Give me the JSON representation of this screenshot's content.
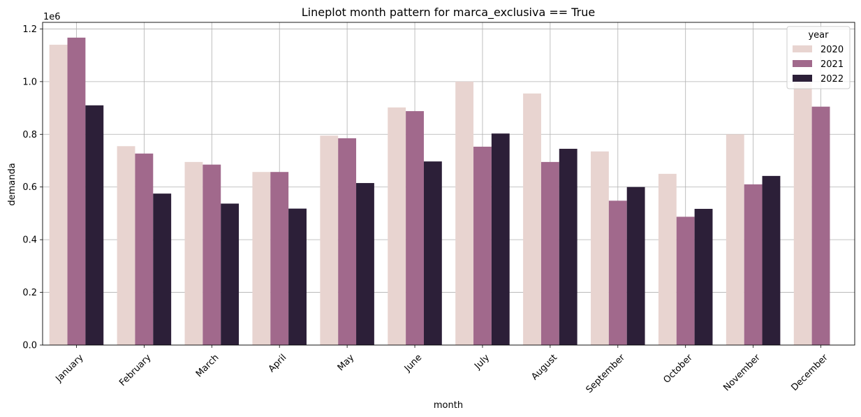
{
  "chart_data": {
    "type": "bar",
    "title": "Lineplot month pattern for marca_exclusiva == True",
    "xlabel": "month",
    "ylabel": "demanda",
    "y_offset_label": "1e6",
    "ylim": [
      0,
      1.225
    ],
    "y_ticks": [
      0.0,
      0.2,
      0.4,
      0.6,
      0.8,
      1.0,
      1.2
    ],
    "y_tick_labels": [
      "0.0",
      "0.2",
      "0.4",
      "0.6",
      "0.8",
      "1.0",
      "1.2"
    ],
    "grid": true,
    "legend": {
      "title": "year",
      "placement": "top-right"
    },
    "categories": [
      "January",
      "February",
      "March",
      "April",
      "May",
      "June",
      "July",
      "August",
      "September",
      "October",
      "November",
      "December"
    ],
    "series": [
      {
        "name": "2020",
        "color": "#e8d4d0",
        "values": [
          1.14,
          0.755,
          0.695,
          0.657,
          0.795,
          0.902,
          1.0,
          0.955,
          0.735,
          0.65,
          0.8,
          1.0
        ]
      },
      {
        "name": "2021",
        "color": "#a1698c",
        "values": [
          1.167,
          0.727,
          0.685,
          0.657,
          0.785,
          0.888,
          0.753,
          0.695,
          0.548,
          0.487,
          0.61,
          0.905
        ]
      },
      {
        "name": "2022",
        "color": "#2c1f38",
        "values": [
          0.91,
          0.575,
          0.537,
          0.518,
          0.615,
          0.697,
          0.803,
          0.745,
          0.6,
          0.517,
          0.642,
          null
        ]
      }
    ]
  }
}
